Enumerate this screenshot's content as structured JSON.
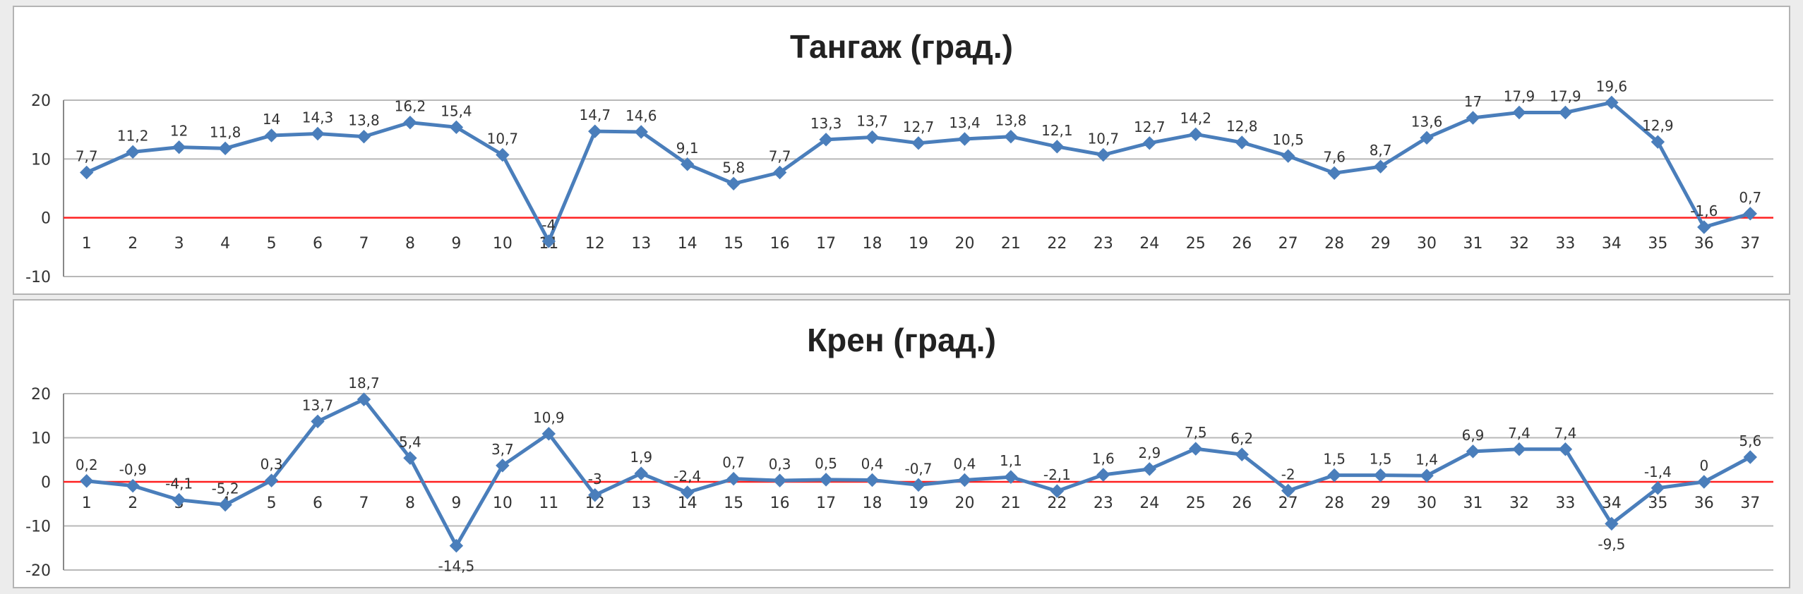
{
  "colors": {
    "series": "#4a7ebb",
    "zero_line": "#ff2020",
    "grid": "#b8b8b8",
    "axis": "#888888"
  },
  "chart_data": [
    {
      "type": "line",
      "title": "Тангаж (град.)",
      "categories": [
        "1",
        "2",
        "3",
        "4",
        "5",
        "6",
        "7",
        "8",
        "9",
        "10",
        "11",
        "12",
        "13",
        "14",
        "15",
        "16",
        "17",
        "18",
        "19",
        "20",
        "21",
        "22",
        "23",
        "24",
        "25",
        "26",
        "27",
        "28",
        "29",
        "30",
        "31",
        "32",
        "33",
        "34",
        "35",
        "36",
        "37"
      ],
      "values": [
        7.7,
        11.2,
        12,
        11.8,
        14,
        14.3,
        13.8,
        16.2,
        15.4,
        10.7,
        -4,
        14.7,
        14.6,
        9.1,
        5.8,
        7.7,
        13.3,
        13.7,
        12.7,
        13.4,
        13.8,
        12.1,
        10.7,
        12.7,
        14.2,
        12.8,
        10.5,
        7.6,
        8.7,
        13.6,
        17,
        17.9,
        17.9,
        19.6,
        12.9,
        -1.6,
        0.7
      ],
      "labels": [
        "7,7",
        "11,2",
        "12",
        "11,8",
        "14",
        "14,3",
        "13,8",
        "16,2",
        "15,4",
        "10,7",
        "-4",
        "14,7",
        "14,6",
        "9,1",
        "5,8",
        "7,7",
        "13,3",
        "13,7",
        "12,7",
        "13,4",
        "13,8",
        "12,1",
        "10,7",
        "12,7",
        "14,2",
        "12,8",
        "10,5",
        "7,6",
        "8,7",
        "13,6",
        "17",
        "17,9",
        "17,9",
        "19,6",
        "12,9",
        "-1,6",
        "0,7"
      ],
      "ylim": [
        -10,
        20
      ],
      "yticks": [
        "-10",
        "0",
        "10",
        "20"
      ],
      "grid": true,
      "marker": "diamond"
    },
    {
      "type": "line",
      "title": "Крен (град.)",
      "categories": [
        "1",
        "2",
        "3",
        "4",
        "5",
        "6",
        "7",
        "8",
        "9",
        "10",
        "11",
        "12",
        "13",
        "14",
        "15",
        "16",
        "17",
        "18",
        "19",
        "20",
        "21",
        "22",
        "23",
        "24",
        "25",
        "26",
        "27",
        "28",
        "29",
        "30",
        "31",
        "32",
        "33",
        "34",
        "35",
        "36",
        "37"
      ],
      "values": [
        0.2,
        -0.9,
        -4.1,
        -5.2,
        0.3,
        13.7,
        18.7,
        5.4,
        -14.5,
        3.7,
        10.9,
        -3,
        1.9,
        -2.4,
        0.7,
        0.3,
        0.5,
        0.4,
        -0.7,
        0.4,
        1.1,
        -2.1,
        1.6,
        2.9,
        7.5,
        6.2,
        -2,
        1.5,
        1.5,
        1.4,
        6.9,
        7.4,
        7.4,
        -9.5,
        -1.4,
        0,
        5.6
      ],
      "labels": [
        "0,2",
        "-0,9",
        "-4,1",
        "-5,2",
        "0,3",
        "13,7",
        "18,7",
        "5,4",
        "-14,5",
        "3,7",
        "10,9",
        "-3",
        "1,9",
        "-2,4",
        "0,7",
        "0,3",
        "0,5",
        "0,4",
        "-0,7",
        "0,4",
        "1,1",
        "-2,1",
        "1,6",
        "2,9",
        "7,5",
        "6,2",
        "-2",
        "1,5",
        "1,5",
        "1,4",
        "6,9",
        "7,4",
        "7,4",
        "-9,5",
        "-1,4",
        "0",
        "5,6"
      ],
      "ylim": [
        -20,
        20
      ],
      "yticks": [
        "-20",
        "-10",
        "0",
        "10",
        "20"
      ],
      "grid": true,
      "marker": "diamond"
    }
  ]
}
